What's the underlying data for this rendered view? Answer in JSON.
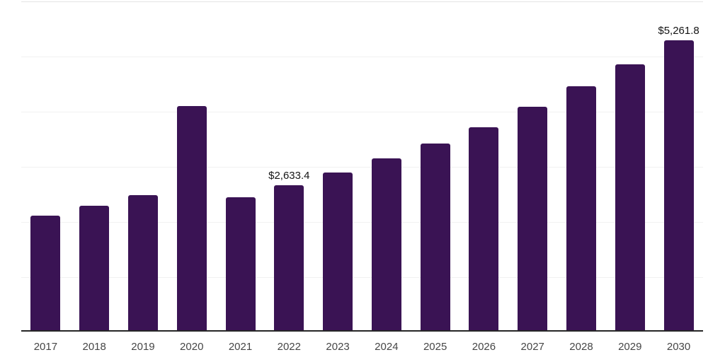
{
  "chart_data": {
    "type": "bar",
    "title": "",
    "xlabel": "",
    "ylabel": "",
    "categories": [
      "2017",
      "2018",
      "2019",
      "2020",
      "2021",
      "2022",
      "2023",
      "2024",
      "2025",
      "2026",
      "2027",
      "2028",
      "2029",
      "2030"
    ],
    "values": [
      2080,
      2250,
      2455,
      4070,
      2415,
      2633.4,
      2865,
      3110,
      3380,
      3685,
      4045,
      4420,
      4815,
      5261.8
    ],
    "labeled_points": [
      {
        "category": "2022",
        "label": "$2,633.4"
      },
      {
        "category": "2030",
        "label": "$5,261.8"
      }
    ],
    "ylim": [
      0,
      6000
    ],
    "gridline_step": 1000,
    "grid": true,
    "legend": false,
    "y_tick_labels_visible": false,
    "bar_color": "#3A1354",
    "axis_color": "#262626",
    "gridline_color": "#F1F1F1",
    "top_gridline_color": "#E4E4E4",
    "tick_label_color": "#464646",
    "value_label_color": "#141414",
    "background_color": "#FFFFFF"
  }
}
